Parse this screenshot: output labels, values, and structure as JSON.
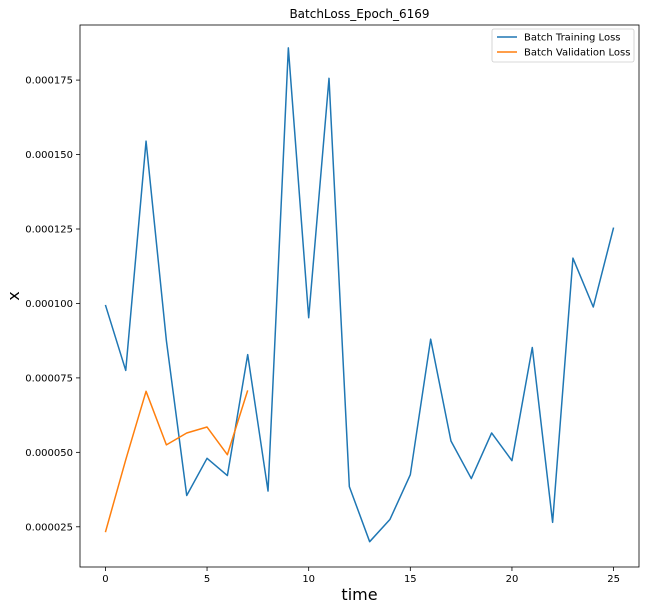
{
  "chart_data": {
    "type": "line",
    "title": "BatchLoss_Epoch_6169",
    "xlabel": "time",
    "ylabel": "x",
    "xlim": [
      -1.25,
      26.25
    ],
    "ylim": [
      1.15e-05,
      0.0001935
    ],
    "x_ticks": [
      0,
      5,
      10,
      15,
      20,
      25
    ],
    "y_ticks": [
      2.5e-05,
      5e-05,
      7.5e-05,
      0.0001,
      0.000125,
      0.00015,
      0.000175
    ],
    "x_tick_labels": [
      "0",
      "5",
      "10",
      "15",
      "20",
      "25"
    ],
    "y_tick_labels": [
      "0.000025",
      "0.000050",
      "0.000075",
      "0.000100",
      "0.000125",
      "0.000150",
      "0.000175"
    ],
    "grid": false,
    "legend_position": "top-right",
    "series": [
      {
        "name": "Batch Training Loss",
        "color": "#1f77b4",
        "x": [
          0,
          1,
          2,
          3,
          4,
          5,
          6,
          7,
          8,
          9,
          10,
          11,
          12,
          13,
          14,
          15,
          16,
          17,
          18,
          19,
          20,
          21,
          22,
          23,
          24,
          25
        ],
        "y": [
          9.95e-05,
          7.75e-05,
          0.0001545,
          8.75e-05,
          3.55e-05,
          4.8e-05,
          4.22e-05,
          8.28e-05,
          3.7e-05,
          0.0001858,
          9.52e-05,
          0.0001756,
          3.85e-05,
          2e-05,
          2.75e-05,
          4.25e-05,
          8.8e-05,
          5.38e-05,
          4.12e-05,
          5.65e-05,
          4.72e-05,
          8.52e-05,
          2.65e-05,
          0.0001152,
          9.88e-05,
          0.0001255
        ]
      },
      {
        "name": "Batch Validation Loss",
        "color": "#ff7f0e",
        "x": [
          0,
          1,
          2,
          3,
          4,
          5,
          6,
          7
        ],
        "y": [
          2.32e-05,
          4.75e-05,
          7.05e-05,
          5.25e-05,
          5.65e-05,
          5.85e-05,
          4.92e-05,
          7.08e-05
        ]
      }
    ]
  }
}
